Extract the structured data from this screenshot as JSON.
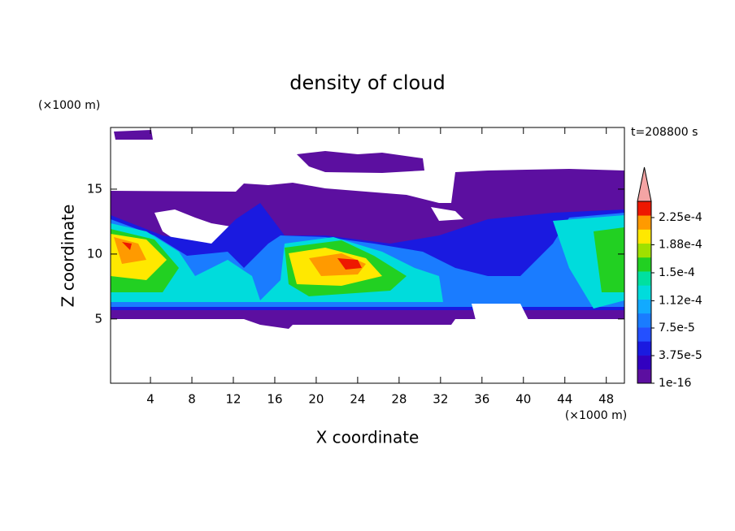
{
  "chart_data": {
    "type": "contour",
    "title": "density of cloud",
    "x_label": "X coordinate",
    "y_label": "Z coordinate",
    "x_unit": "(×1000 m)",
    "y_unit": "(×1000 m)",
    "time_label": "t=208800 s",
    "xlim": [
      0.15,
      49.75
    ],
    "ylim": [
      0.05,
      19.75
    ],
    "xticks": [
      4,
      8,
      12,
      16,
      20,
      24,
      28,
      32,
      36,
      40,
      44,
      48
    ],
    "yticks": [
      5,
      10,
      15
    ],
    "cblim": [
      1e-16,
      0.000247
    ],
    "cbticks": [
      1e-16,
      {
        "value": 3.75e-05,
        "label": "3.75e-5"
      },
      {
        "value": 7.5e-05,
        "label": "7.5e-5"
      },
      {
        "value": 0.000112,
        "label": "1.12e-4"
      },
      {
        "value": 0.00015,
        "label": "1.5e-4"
      },
      {
        "value": 0.000188,
        "label": "1.88e-4"
      },
      {
        "value": 0.000225,
        "label": "2.25e-4"
      }
    ],
    "colors": [
      "#5c0fa0",
      "#3200c0",
      "#1a1ae0",
      "#2450ff",
      "#1a7cff",
      "#12aaff",
      "#00dcdc",
      "#00e0a0",
      "#22d022",
      "#a0e000",
      "#ffe800",
      "#ff9a00",
      "#ee1800"
    ],
    "extend_color": "#f4a4a4"
  }
}
